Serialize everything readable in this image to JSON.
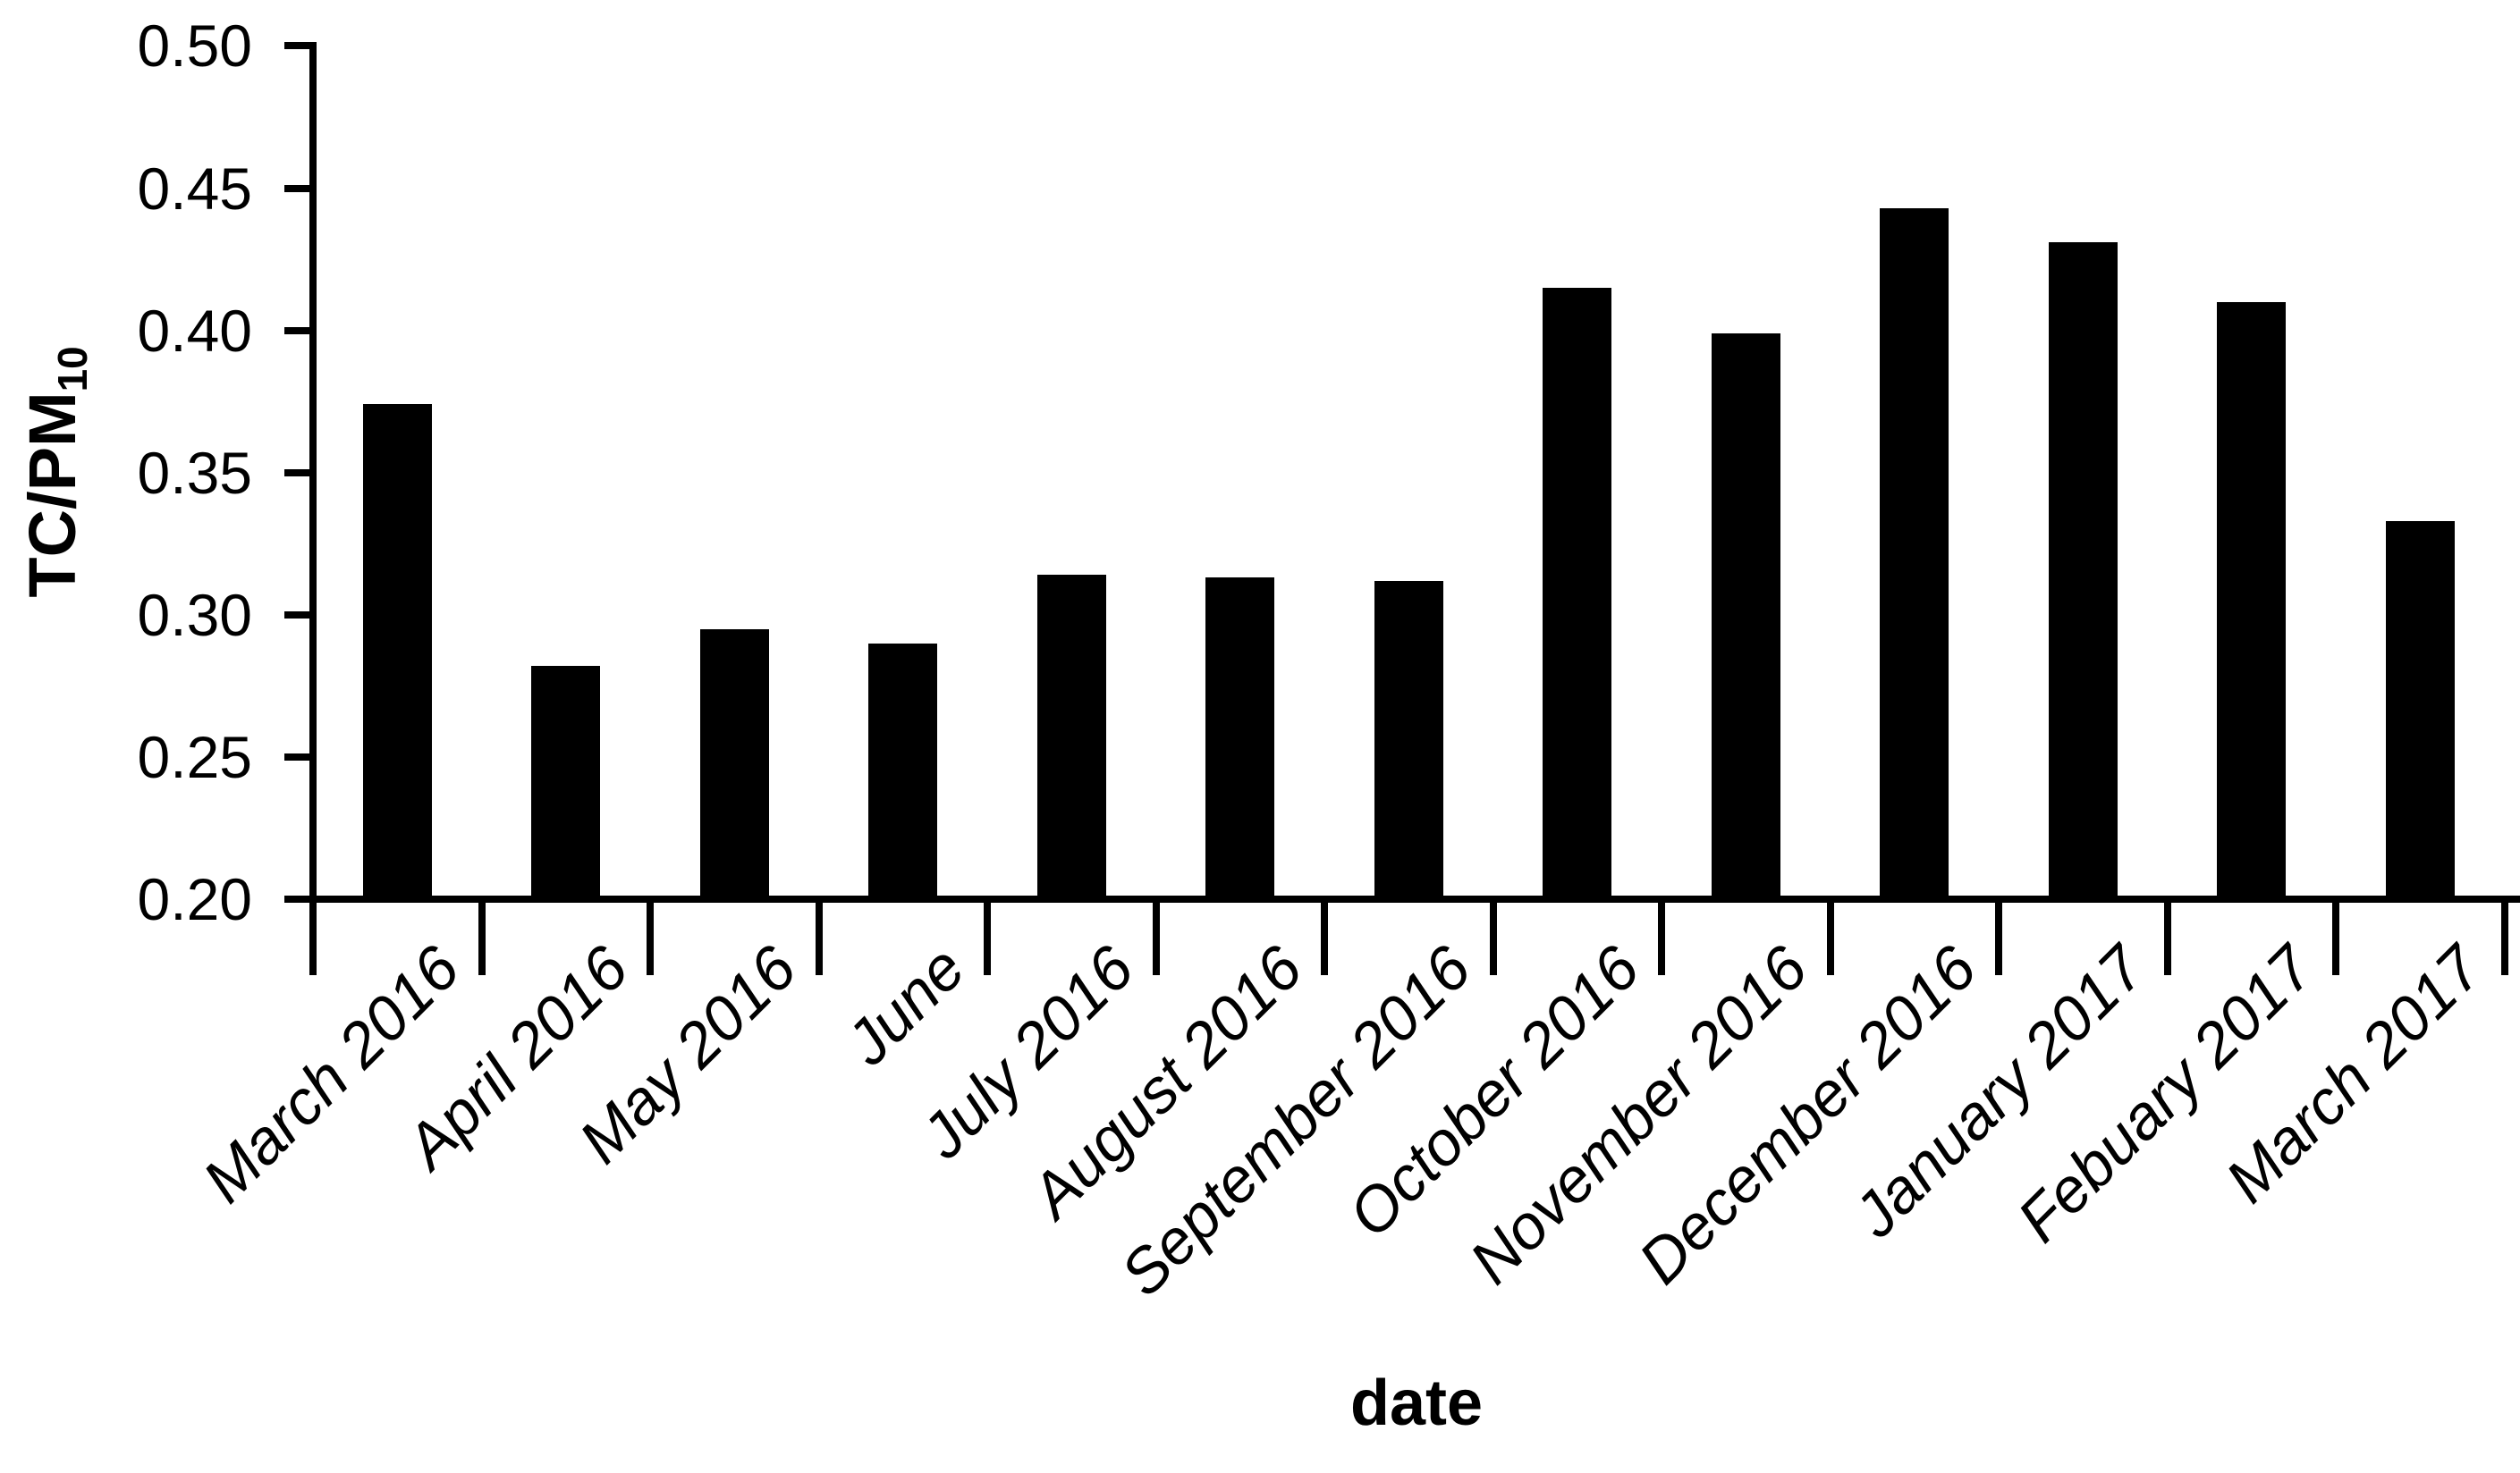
{
  "chart_data": {
    "type": "bar",
    "title": "",
    "xlabel": "date",
    "ylabel": "TC/PM",
    "ylabel_subscript": "10",
    "categories": [
      "March 2016",
      "April 2016",
      "May 2016",
      "June",
      "July 2016",
      "August 2016",
      "September 2016",
      "October 2016",
      "November 2016",
      "December 2016",
      "January 2017",
      "Febuary 2017",
      "March 2017"
    ],
    "values": [
      0.374,
      0.282,
      0.295,
      0.29,
      0.314,
      0.313,
      0.312,
      0.415,
      0.399,
      0.443,
      0.431,
      0.41,
      0.333
    ],
    "ylim": [
      0.2,
      0.5
    ],
    "ytick_step": 0.05,
    "ytick_labels": [
      "0.20",
      "0.25",
      "0.30",
      "0.35",
      "0.40",
      "0.45",
      "0.50"
    ],
    "bar_color": "#000000",
    "axis_color": "#000000",
    "background_color": "#ffffff",
    "grid": false,
    "legend": null
  }
}
